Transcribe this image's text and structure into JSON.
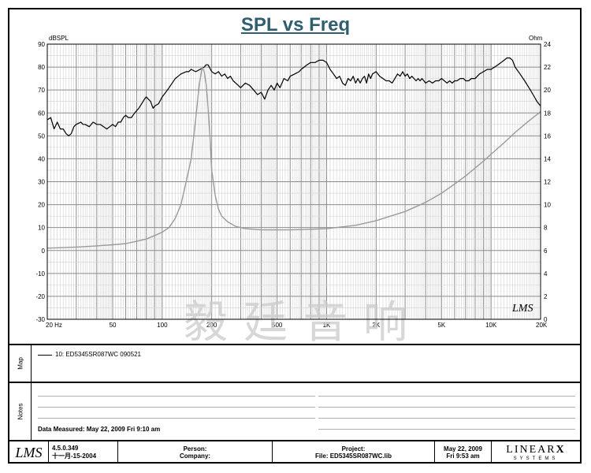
{
  "title": "SPL vs Freq",
  "chart_data": {
    "type": "line",
    "title": "SPL vs Freq",
    "xscale": "log",
    "xlim": [
      20,
      20000
    ],
    "x_ticks": [
      {
        "f": 20,
        "label": "20  Hz"
      },
      {
        "f": 50,
        "label": "50"
      },
      {
        "f": 100,
        "label": "100"
      },
      {
        "f": 200,
        "label": "200"
      },
      {
        "f": 500,
        "label": "500"
      },
      {
        "f": 1000,
        "label": "1K"
      },
      {
        "f": 2000,
        "label": "2K"
      },
      {
        "f": 5000,
        "label": "5K"
      },
      {
        "f": 10000,
        "label": "10K"
      },
      {
        "f": 20000,
        "label": "20K"
      }
    ],
    "ylabel_left": "dBSPL",
    "ylim_left": [
      -30,
      90
    ],
    "yticks_left": [
      90,
      80,
      70,
      60,
      50,
      40,
      30,
      20,
      10,
      0,
      -10,
      -20,
      -30
    ],
    "ylabel_right": "Ohm",
    "ylim_right": [
      0,
      24
    ],
    "yticks_right": [
      24,
      22,
      20,
      18,
      16,
      14,
      12,
      10,
      8,
      6,
      4,
      2,
      0
    ],
    "series": [
      {
        "name": "SPL",
        "axis": "left",
        "color": "#000000",
        "points": [
          [
            20,
            57
          ],
          [
            21,
            58
          ],
          [
            22,
            53
          ],
          [
            23,
            56
          ],
          [
            24,
            53
          ],
          [
            25,
            53
          ],
          [
            26,
            51
          ],
          [
            27,
            50
          ],
          [
            28,
            51
          ],
          [
            29,
            54
          ],
          [
            30,
            55
          ],
          [
            32,
            56
          ],
          [
            33,
            55
          ],
          [
            34,
            55
          ],
          [
            36,
            54
          ],
          [
            38,
            56
          ],
          [
            40,
            55
          ],
          [
            42,
            55
          ],
          [
            44,
            54
          ],
          [
            46,
            53
          ],
          [
            48,
            54
          ],
          [
            50,
            55
          ],
          [
            52,
            54
          ],
          [
            54,
            56
          ],
          [
            56,
            56
          ],
          [
            58,
            58
          ],
          [
            60,
            59
          ],
          [
            62,
            58
          ],
          [
            65,
            58
          ],
          [
            68,
            60
          ],
          [
            70,
            61
          ],
          [
            72,
            62
          ],
          [
            75,
            64
          ],
          [
            78,
            66
          ],
          [
            80,
            67
          ],
          [
            85,
            65
          ],
          [
            88,
            62
          ],
          [
            90,
            63
          ],
          [
            95,
            64
          ],
          [
            100,
            67
          ],
          [
            105,
            69
          ],
          [
            110,
            71
          ],
          [
            115,
            73
          ],
          [
            120,
            75
          ],
          [
            125,
            76
          ],
          [
            130,
            77
          ],
          [
            140,
            78
          ],
          [
            145,
            78
          ],
          [
            150,
            79
          ],
          [
            160,
            78
          ],
          [
            170,
            79
          ],
          [
            180,
            80
          ],
          [
            185,
            81
          ],
          [
            190,
            81
          ],
          [
            200,
            78
          ],
          [
            210,
            77
          ],
          [
            220,
            78
          ],
          [
            230,
            76
          ],
          [
            240,
            77
          ],
          [
            250,
            75
          ],
          [
            260,
            76
          ],
          [
            270,
            74
          ],
          [
            280,
            73
          ],
          [
            290,
            72
          ],
          [
            300,
            71
          ],
          [
            320,
            73
          ],
          [
            340,
            72
          ],
          [
            360,
            70
          ],
          [
            380,
            68
          ],
          [
            400,
            69
          ],
          [
            420,
            66
          ],
          [
            440,
            70
          ],
          [
            460,
            72
          ],
          [
            480,
            70
          ],
          [
            500,
            73
          ],
          [
            520,
            71
          ],
          [
            550,
            75
          ],
          [
            580,
            74
          ],
          [
            600,
            76
          ],
          [
            640,
            77
          ],
          [
            680,
            78
          ],
          [
            700,
            79
          ],
          [
            730,
            80
          ],
          [
            760,
            81
          ],
          [
            800,
            82
          ],
          [
            850,
            82
          ],
          [
            900,
            83
          ],
          [
            950,
            83
          ],
          [
            1000,
            82
          ],
          [
            1050,
            79
          ],
          [
            1100,
            77
          ],
          [
            1150,
            75
          ],
          [
            1200,
            76
          ],
          [
            1250,
            73
          ],
          [
            1300,
            72
          ],
          [
            1350,
            75
          ],
          [
            1400,
            74
          ],
          [
            1450,
            76
          ],
          [
            1500,
            73
          ],
          [
            1550,
            75
          ],
          [
            1600,
            73
          ],
          [
            1650,
            75
          ],
          [
            1700,
            76
          ],
          [
            1750,
            73
          ],
          [
            1800,
            77
          ],
          [
            1850,
            75
          ],
          [
            1900,
            77
          ],
          [
            2000,
            78
          ],
          [
            2100,
            76
          ],
          [
            2200,
            75
          ],
          [
            2300,
            74
          ],
          [
            2400,
            74
          ],
          [
            2500,
            73
          ],
          [
            2600,
            75
          ],
          [
            2700,
            77
          ],
          [
            2800,
            76
          ],
          [
            2900,
            78
          ],
          [
            3000,
            76
          ],
          [
            3100,
            77
          ],
          [
            3200,
            75
          ],
          [
            3300,
            76
          ],
          [
            3400,
            75
          ],
          [
            3500,
            74
          ],
          [
            3600,
            75
          ],
          [
            3700,
            74
          ],
          [
            3800,
            75
          ],
          [
            3900,
            74
          ],
          [
            4000,
            73
          ],
          [
            4200,
            74
          ],
          [
            4400,
            73
          ],
          [
            4600,
            74
          ],
          [
            4800,
            74
          ],
          [
            5000,
            75
          ],
          [
            5200,
            74
          ],
          [
            5400,
            73
          ],
          [
            5600,
            74
          ],
          [
            5800,
            73
          ],
          [
            6000,
            74
          ],
          [
            6200,
            74
          ],
          [
            6500,
            75
          ],
          [
            6800,
            75
          ],
          [
            7000,
            74
          ],
          [
            7300,
            74
          ],
          [
            7600,
            75
          ],
          [
            8000,
            75
          ],
          [
            8500,
            77
          ],
          [
            9000,
            78
          ],
          [
            9500,
            79
          ],
          [
            10000,
            79
          ],
          [
            10500,
            80
          ],
          [
            11000,
            81
          ],
          [
            11500,
            82
          ],
          [
            12000,
            83
          ],
          [
            12500,
            84
          ],
          [
            13000,
            84
          ],
          [
            13500,
            83
          ],
          [
            14000,
            80
          ],
          [
            15000,
            77
          ],
          [
            16000,
            74
          ],
          [
            17000,
            71
          ],
          [
            18000,
            68
          ],
          [
            19000,
            65
          ],
          [
            20000,
            63
          ]
        ]
      },
      {
        "name": "Impedance",
        "axis": "right",
        "color": "#9a9a9a",
        "points": [
          [
            20,
            6.2
          ],
          [
            30,
            6.3
          ],
          [
            40,
            6.4
          ],
          [
            50,
            6.5
          ],
          [
            60,
            6.6
          ],
          [
            70,
            6.8
          ],
          [
            80,
            7.0
          ],
          [
            90,
            7.3
          ],
          [
            100,
            7.6
          ],
          [
            110,
            8.0
          ],
          [
            120,
            8.8
          ],
          [
            130,
            10.0
          ],
          [
            140,
            12.0
          ],
          [
            150,
            14.0
          ],
          [
            160,
            17.5
          ],
          [
            168,
            20.5
          ],
          [
            175,
            22.0
          ],
          [
            180,
            21.6
          ],
          [
            185,
            20.5
          ],
          [
            190,
            18.5
          ],
          [
            195,
            16.0
          ],
          [
            200,
            13.0
          ],
          [
            210,
            10.8
          ],
          [
            220,
            9.6
          ],
          [
            230,
            9.0
          ],
          [
            250,
            8.5
          ],
          [
            280,
            8.1
          ],
          [
            320,
            7.9
          ],
          [
            400,
            7.8
          ],
          [
            500,
            7.8
          ],
          [
            600,
            7.8
          ],
          [
            800,
            7.85
          ],
          [
            1000,
            7.9
          ],
          [
            1500,
            8.2
          ],
          [
            2000,
            8.6
          ],
          [
            3000,
            9.4
          ],
          [
            4000,
            10.2
          ],
          [
            5000,
            11.0
          ],
          [
            6000,
            11.8
          ],
          [
            7000,
            12.5
          ],
          [
            8000,
            13.2
          ],
          [
            9000,
            13.8
          ],
          [
            10000,
            14.4
          ],
          [
            12000,
            15.4
          ],
          [
            14000,
            16.3
          ],
          [
            16000,
            17.0
          ],
          [
            18000,
            17.6
          ],
          [
            20000,
            18.1
          ]
        ]
      }
    ]
  },
  "watermark": "毅廷音响",
  "plot_logo": "LMS",
  "map_panel": {
    "label": "Map",
    "legend_entry": "10: ED5345SR087WC   090521"
  },
  "notes_panel": {
    "label": "Notes",
    "measured": "Data Measured: May 22, 2009  Fri  9:10 am"
  },
  "footer": {
    "logo": "LMS",
    "version": "4.5.0.349",
    "build_date": "十一月-15-2004",
    "person_label": "Person:",
    "company_label": "Company:",
    "project_label": "Project:",
    "file_label": "File: ED5345SR087WC.lib",
    "date": "May 22, 2009",
    "time": "Fri  9:53 am",
    "brand": "LINEAR",
    "brand_x": "X",
    "brand_sub": "SYSTEMS"
  }
}
